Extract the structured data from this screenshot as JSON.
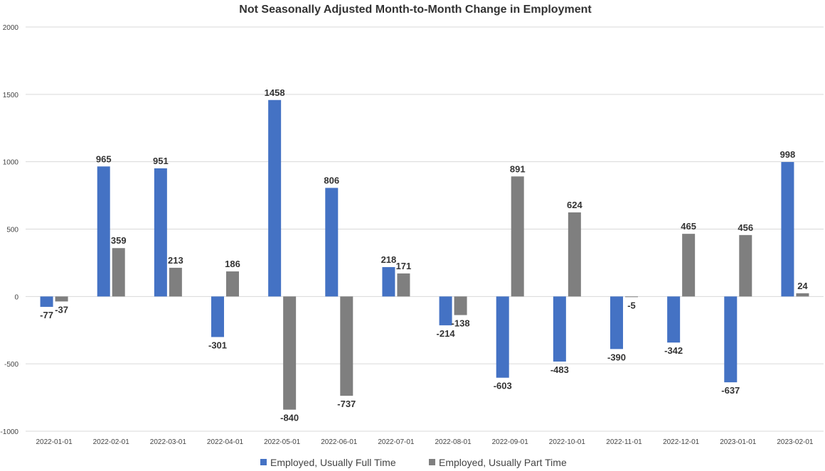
{
  "chart_data": {
    "type": "bar",
    "title": "Not Seasonally Adjusted Month-to-Month Change in Employment",
    "xlabel": "",
    "ylabel": "",
    "ylim": [
      -1000,
      2000
    ],
    "yticks": [
      -1000,
      -500,
      0,
      500,
      1000,
      1500,
      2000
    ],
    "grid": true,
    "legend_position": "bottom",
    "categories": [
      "2022-01-01",
      "2022-02-01",
      "2022-03-01",
      "2022-04-01",
      "2022-05-01",
      "2022-06-01",
      "2022-07-01",
      "2022-08-01",
      "2022-09-01",
      "2022-10-01",
      "2022-11-01",
      "2022-12-01",
      "2023-01-01",
      "2023-02-01"
    ],
    "series": [
      {
        "name": "Employed, Usually Full Time",
        "color": "#4472c4",
        "values": [
          -77,
          965,
          951,
          -301,
          1458,
          806,
          218,
          -214,
          -603,
          -483,
          -390,
          -342,
          -637,
          998
        ]
      },
      {
        "name": "Employed, Usually Part Time",
        "color": "#7f7f7f",
        "values": [
          -37,
          359,
          213,
          186,
          -840,
          -737,
          171,
          -138,
          891,
          624,
          -5,
          465,
          456,
          24
        ]
      }
    ]
  }
}
